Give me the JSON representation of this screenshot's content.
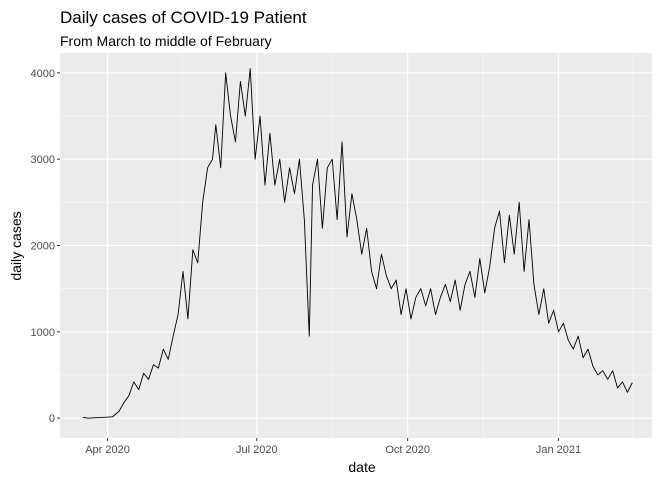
{
  "chart_data": {
    "type": "line",
    "title": "Daily cases of COVID-19 Patient",
    "subtitle": "From March to middle of February",
    "xlabel": "date",
    "ylabel": "daily cases",
    "ylim": [
      -230,
      4230
    ],
    "xlim": [
      "2020-03-03",
      "2021-02-27"
    ],
    "y_ticks": [
      {
        "value": 0,
        "label": "0"
      },
      {
        "value": 1000,
        "label": "1000"
      },
      {
        "value": 2000,
        "label": "2000"
      },
      {
        "value": 3000,
        "label": "3000"
      },
      {
        "value": 4000,
        "label": "4000"
      }
    ],
    "x_ticks": [
      {
        "date": "2020-04-01",
        "label": "Apr 2020"
      },
      {
        "date": "2020-07-01",
        "label": "Jul 2020"
      },
      {
        "date": "2020-10-01",
        "label": "Oct 2020"
      },
      {
        "date": "2021-01-01",
        "label": "Jan 2021"
      }
    ],
    "grid": true,
    "panel_background": "#ebebeb",
    "grid_color": "#ffffff",
    "line_color": "#000000",
    "series": [
      {
        "x": [
          "2020-03-17",
          "2020-03-20",
          "2020-03-25",
          "2020-03-30",
          "2020-04-04",
          "2020-04-08",
          "2020-04-11",
          "2020-04-14",
          "2020-04-17",
          "2020-04-20",
          "2020-04-23",
          "2020-04-26",
          "2020-04-29",
          "2020-05-02",
          "2020-05-05",
          "2020-05-08",
          "2020-05-11",
          "2020-05-14",
          "2020-05-17",
          "2020-05-20",
          "2020-05-23",
          "2020-05-26",
          "2020-05-29",
          "2020-06-01",
          "2020-06-04",
          "2020-06-06",
          "2020-06-09",
          "2020-06-12",
          "2020-06-15",
          "2020-06-18",
          "2020-06-21",
          "2020-06-24",
          "2020-06-27",
          "2020-06-30",
          "2020-07-03",
          "2020-07-06",
          "2020-07-09",
          "2020-07-12",
          "2020-07-15",
          "2020-07-18",
          "2020-07-21",
          "2020-07-24",
          "2020-07-27",
          "2020-07-30",
          "2020-08-02",
          "2020-08-04",
          "2020-08-07",
          "2020-08-10",
          "2020-08-13",
          "2020-08-16",
          "2020-08-19",
          "2020-08-22",
          "2020-08-25",
          "2020-08-28",
          "2020-08-31",
          "2020-09-03",
          "2020-09-06",
          "2020-09-09",
          "2020-09-12",
          "2020-09-15",
          "2020-09-18",
          "2020-09-21",
          "2020-09-24",
          "2020-09-27",
          "2020-09-30",
          "2020-10-03",
          "2020-10-06",
          "2020-10-09",
          "2020-10-12",
          "2020-10-15",
          "2020-10-18",
          "2020-10-21",
          "2020-10-24",
          "2020-10-27",
          "2020-10-30",
          "2020-11-02",
          "2020-11-05",
          "2020-11-08",
          "2020-11-11",
          "2020-11-14",
          "2020-11-17",
          "2020-11-20",
          "2020-11-23",
          "2020-11-26",
          "2020-11-29",
          "2020-12-02",
          "2020-12-05",
          "2020-12-08",
          "2020-12-11",
          "2020-12-14",
          "2020-12-17",
          "2020-12-20",
          "2020-12-23",
          "2020-12-26",
          "2020-12-29",
          "2021-01-01",
          "2021-01-04",
          "2021-01-07",
          "2021-01-10",
          "2021-01-13",
          "2021-01-16",
          "2021-01-19",
          "2021-01-22",
          "2021-01-25",
          "2021-01-28",
          "2021-01-31",
          "2021-02-03",
          "2021-02-06",
          "2021-02-09",
          "2021-02-12",
          "2021-02-15"
        ],
        "y": [
          10,
          0,
          5,
          10,
          15,
          80,
          180,
          260,
          420,
          330,
          520,
          450,
          620,
          580,
          800,
          680,
          950,
          1200,
          1700,
          1150,
          1950,
          1800,
          2500,
          2900,
          3000,
          3400,
          2900,
          4000,
          3500,
          3200,
          3900,
          3500,
          4050,
          3000,
          3500,
          2700,
          3300,
          2700,
          3000,
          2500,
          2900,
          2600,
          3000,
          2300,
          950,
          2700,
          3000,
          2200,
          2900,
          3000,
          2300,
          3200,
          2100,
          2600,
          2300,
          1900,
          2200,
          1700,
          1500,
          1900,
          1650,
          1500,
          1600,
          1200,
          1500,
          1150,
          1400,
          1500,
          1300,
          1500,
          1200,
          1400,
          1550,
          1350,
          1600,
          1250,
          1550,
          1700,
          1400,
          1850,
          1450,
          1750,
          2200,
          2400,
          1800,
          2350,
          1900,
          2500,
          1700,
          2300,
          1550,
          1200,
          1500,
          1100,
          1250,
          1000,
          1100,
          900,
          800,
          950,
          700,
          800,
          600,
          500,
          550,
          450,
          550,
          350,
          420,
          300,
          410
        ]
      }
    ]
  }
}
